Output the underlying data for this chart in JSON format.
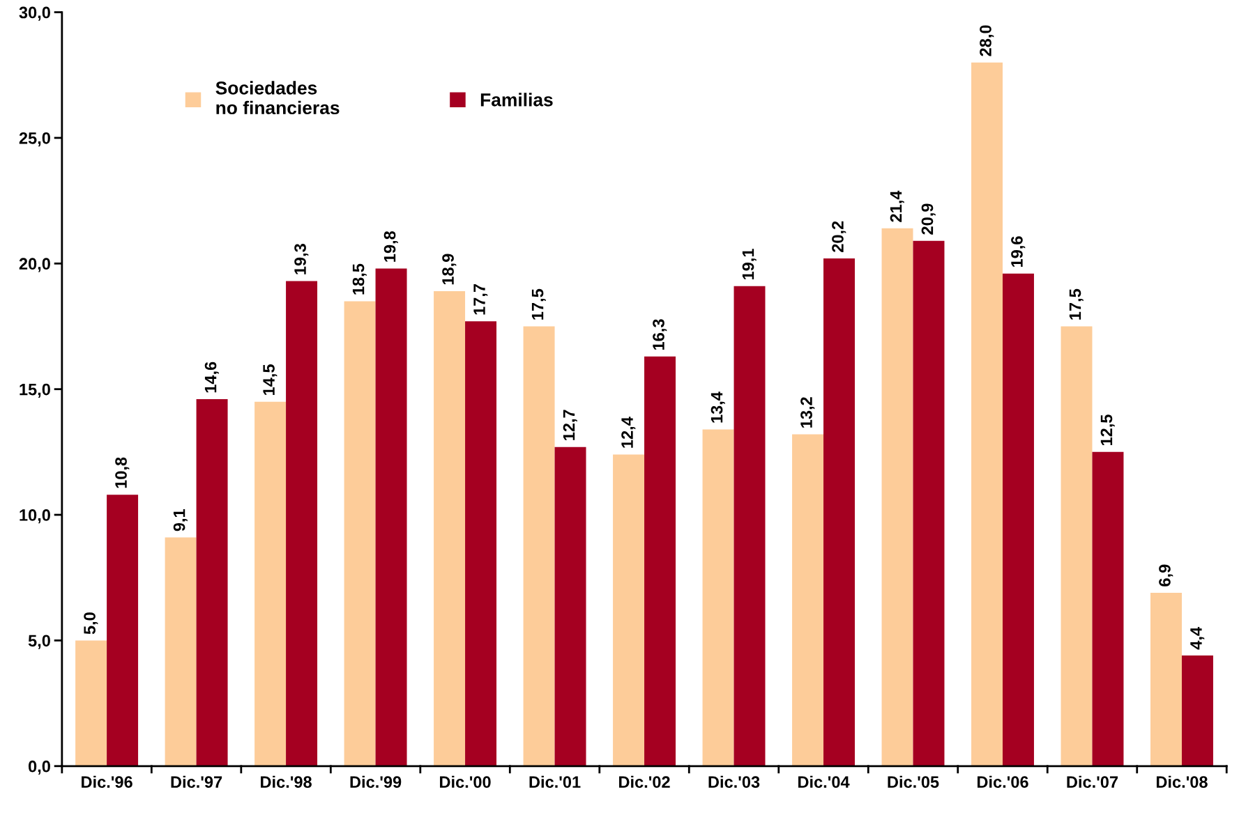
{
  "chart_data": {
    "type": "bar",
    "categories": [
      "Dic.'96",
      "Dic.'97",
      "Dic.'98",
      "Dic.'99",
      "Dic.'00",
      "Dic.'01",
      "Dic.'02",
      "Dic.'03",
      "Dic.'04",
      "Dic.'05",
      "Dic.'06",
      "Dic.'07",
      "Dic.'08"
    ],
    "series": [
      {
        "name": "Sociedades\nno financieras",
        "color": "#fdcc99",
        "values": [
          5.0,
          9.1,
          14.5,
          18.5,
          18.9,
          17.5,
          12.4,
          13.4,
          13.2,
          21.4,
          28.0,
          17.5,
          6.9
        ],
        "value_labels": [
          "5,0",
          "9,1",
          "14,5",
          "18,5",
          "18,9",
          "17,5",
          "12,4",
          "13,4",
          "13,2",
          "21,4",
          "28,0",
          "17,5",
          "6,9"
        ]
      },
      {
        "name": "Familias",
        "color": "#a50021",
        "values": [
          10.8,
          14.6,
          19.3,
          19.8,
          17.7,
          12.7,
          16.3,
          19.1,
          20.2,
          20.9,
          19.6,
          12.5,
          4.4
        ],
        "value_labels": [
          "10,8",
          "14,6",
          "19,3",
          "19,8",
          "17,7",
          "12,7",
          "16,3",
          "19,1",
          "20,2",
          "20,9",
          "19,6",
          "12,5",
          "4,4"
        ]
      }
    ],
    "ylim": [
      0,
      30
    ],
    "yticks": [
      {
        "value": 0,
        "label": "0,0"
      },
      {
        "value": 5,
        "label": "5,0"
      },
      {
        "value": 10,
        "label": "10,0"
      },
      {
        "value": 15,
        "label": "15,0"
      },
      {
        "value": 20,
        "label": "20,0"
      },
      {
        "value": 25,
        "label": "25,0"
      },
      {
        "value": 30,
        "label": "30,0"
      }
    ],
    "grid": false,
    "legend": "top left"
  }
}
